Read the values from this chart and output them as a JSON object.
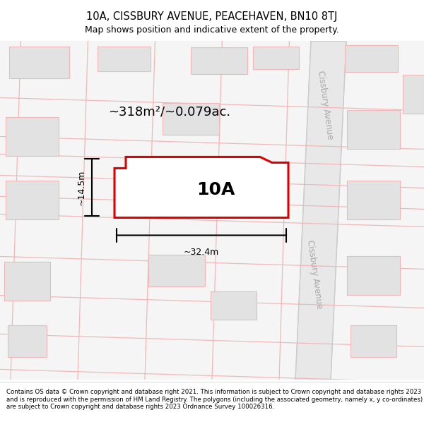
{
  "title_line1": "10A, CISSBURY AVENUE, PEACEHAVEN, BN10 8TJ",
  "title_line2": "Map shows position and indicative extent of the property.",
  "footer_text": "Contains OS data © Crown copyright and database right 2021. This information is subject to Crown copyright and database rights 2023 and is reproduced with the permission of HM Land Registry. The polygons (including the associated geometry, namely x, y co-ordinates) are subject to Crown copyright and database rights 2023 Ordnance Survey 100026316.",
  "area_label": "~318m²/~0.079ac.",
  "property_label": "10A",
  "width_label": "~32.4m",
  "height_label": "~14.5m",
  "road_label": "Cissbury Avenue",
  "bg_color": "#ffffff",
  "map_bg": "#f5f5f5",
  "building_fill": "#e2e2e2",
  "building_edge": "#f0b8b8",
  "road_fill": "#e8e8e8",
  "road_edge": "#cccccc",
  "property_edge": "#dd0000",
  "property_fill": "#ffffff",
  "grid_color": "#f0b8b8"
}
